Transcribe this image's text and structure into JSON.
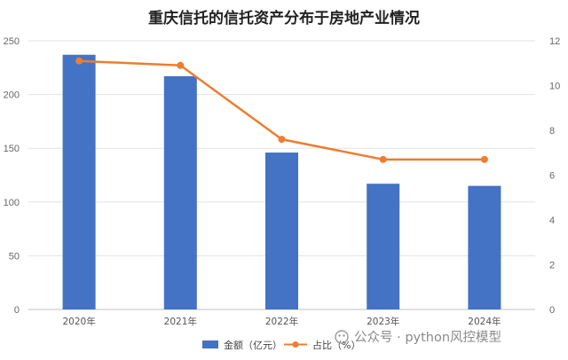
{
  "chart_data": {
    "type": "bar+line",
    "title": "重庆信托的信托资产分布于房地产业情况",
    "categories": [
      "2020年",
      "2021年",
      "2022年",
      "2023年",
      "2024年"
    ],
    "series": [
      {
        "name": "金额（亿元）",
        "type": "bar",
        "axis": "left",
        "color": "#4472C4",
        "values": [
          237,
          217,
          146,
          117,
          115
        ]
      },
      {
        "name": "占比（%）",
        "type": "line",
        "axis": "right",
        "color": "#ED7D31",
        "values": [
          11.1,
          10.9,
          7.6,
          6.7,
          6.7
        ]
      }
    ],
    "y_left": {
      "ylim": [
        0,
        250
      ],
      "ticks": [
        "0",
        "50",
        "100",
        "150",
        "200",
        "250"
      ]
    },
    "y_right": {
      "ylim": [
        0,
        12
      ],
      "ticks": [
        "0",
        "2",
        "4",
        "6",
        "8",
        "10",
        "12"
      ]
    },
    "grid": true,
    "legend": "bottom"
  },
  "watermark": "公众号 · python风控模型"
}
